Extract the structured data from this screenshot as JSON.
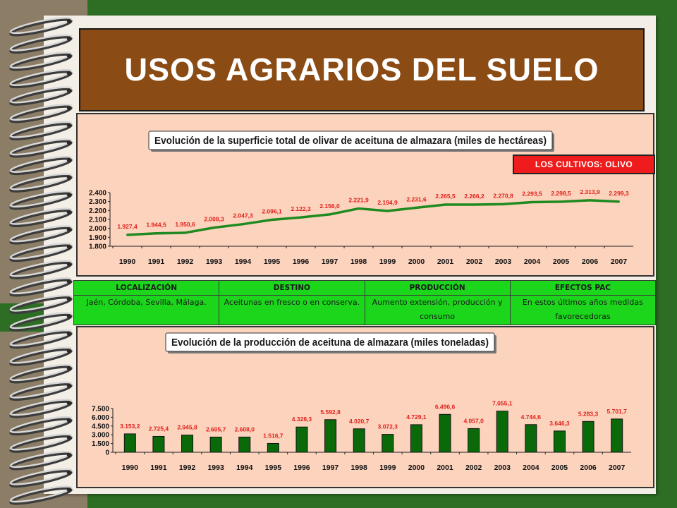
{
  "title": "USOS AGRARIOS DEL SUELO",
  "badge": "LOS CULTIVOS: OLIVO",
  "table": {
    "headers": [
      "LOCALIZACIÓN",
      "DESTINO",
      "PRODUCCIÓN",
      "EFECTOS PAC"
    ],
    "row": [
      "Jaén, Córdoba, Sevilla, Málaga.",
      "Aceitunas en fresco o en conserva.",
      "Aumento extensión, producción y consumo",
      "En estos últimos años medidas favorecedoras"
    ]
  },
  "chart_data": [
    {
      "type": "line",
      "title": "Evolución de la superficie total de olivar de aceituna de almazara (miles de hectáreas)",
      "categories": [
        "1990",
        "1991",
        "1992",
        "1993",
        "1994",
        "1995",
        "1996",
        "1997",
        "1998",
        "1999",
        "2000",
        "2001",
        "2002",
        "2003",
        "2004",
        "2005",
        "2006",
        "2007"
      ],
      "values": [
        1927.4,
        1944.5,
        1950.6,
        2008.3,
        2047.3,
        2096.1,
        2122.3,
        2156.0,
        2221.9,
        2194.9,
        2231.6,
        2265.5,
        2266.2,
        2270.8,
        2293.5,
        2298.5,
        2313.9,
        2299.3
      ],
      "value_labels": [
        "1.927,4",
        "1.944,5",
        "1.950,6",
        "2.008,3",
        "2.047,3",
        "2.096,1",
        "2.122,3",
        "2.156,0",
        "2.221,9",
        "2.194,9",
        "2.231,6",
        "2.265,5",
        "2.266,2",
        "2.270,8",
        "2.293,5",
        "2.298,5",
        "2.313,9",
        "2.299,3"
      ],
      "ylim": [
        1800,
        2400
      ],
      "yticks": [
        1800,
        1900,
        2000,
        2100,
        2200,
        2300,
        2400
      ],
      "ytick_labels": [
        "1.800",
        "1.900",
        "2.000",
        "2.100",
        "2.200",
        "2.300",
        "2.400"
      ],
      "line_color": "#1f8a1f",
      "label_color": "#e0201c",
      "grid": false
    },
    {
      "type": "bar",
      "title": "Evolución de la producción de aceituna de almazara (miles toneladas)",
      "categories": [
        "1990",
        "1991",
        "1992",
        "1993",
        "1994",
        "1995",
        "1996",
        "1997",
        "1998",
        "1999",
        "2000",
        "2001",
        "2002",
        "2003",
        "2004",
        "2005",
        "2006",
        "2007"
      ],
      "values": [
        3153.2,
        2725.4,
        2945.8,
        2605.7,
        2608.0,
        1516.7,
        4328.3,
        5592.8,
        4020.7,
        3072.3,
        4729.1,
        6496.6,
        4057.0,
        7055.1,
        4744.6,
        3646.3,
        5283.3,
        5701.7
      ],
      "value_labels": [
        "3.153,2",
        "2.725,4",
        "2.945,8",
        "2.605,7",
        "2.608,0",
        "1.516,7",
        "4.328,3",
        "5.592,8",
        "4.020,7",
        "3.072,3",
        "4.729,1",
        "6.496,6",
        "4.057,0",
        "7.055,1",
        "4.744,6",
        "3.646,3",
        "5.283,3",
        "5.701,7"
      ],
      "ylim": [
        0,
        7500
      ],
      "yticks": [
        0,
        1500,
        3000,
        4500,
        6000,
        7500
      ],
      "ytick_labels": [
        "0",
        "1.500",
        "3.000",
        "4.500",
        "6.000",
        "7.500"
      ],
      "bar_color": "#0a6a0a",
      "label_color": "#e0201c",
      "grid": false
    }
  ]
}
